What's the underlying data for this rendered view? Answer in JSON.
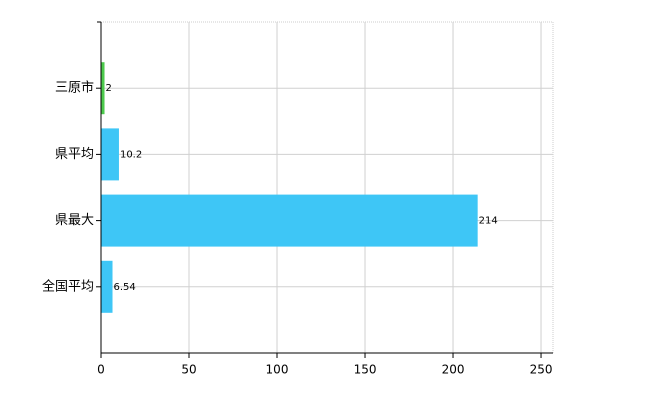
{
  "chart_data": {
    "type": "barh",
    "categories": [
      "三原市",
      "県平均",
      "県最大",
      "全国平均"
    ],
    "values": [
      2,
      10.2,
      214,
      6.54
    ],
    "colors": [
      "#4cc94c",
      "#3ec6f6",
      "#3ec6f6",
      "#3ec6f6"
    ],
    "xlim": [
      0,
      256.8
    ],
    "xticks": [
      0,
      50,
      100,
      150,
      200,
      250
    ],
    "grid": true
  }
}
